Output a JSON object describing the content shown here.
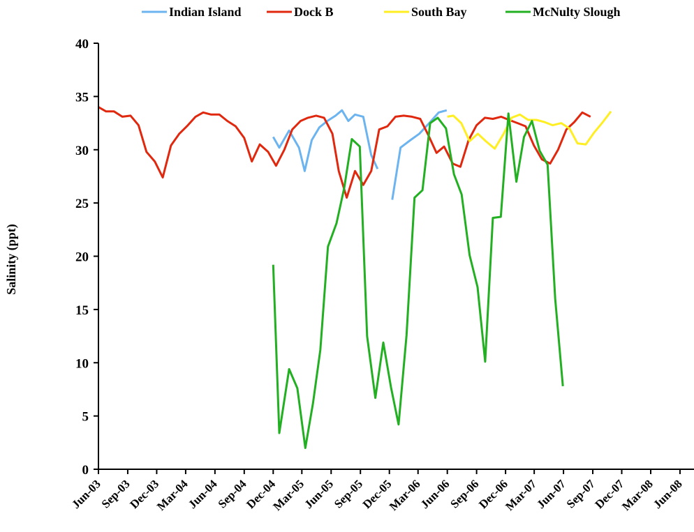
{
  "chart_data": {
    "type": "line",
    "title": "",
    "xlabel": "",
    "ylabel": "Salinity (ppt)",
    "ylim": [
      0,
      40
    ],
    "yticks": [
      0,
      5,
      10,
      15,
      20,
      25,
      30,
      35,
      40
    ],
    "xlim": [
      "2003-06-01",
      "2008-07-15"
    ],
    "xtick_dates": [
      "2003-06-01",
      "2003-09-01",
      "2003-12-01",
      "2004-03-01",
      "2004-06-01",
      "2004-09-01",
      "2004-12-01",
      "2005-03-01",
      "2005-06-01",
      "2005-09-01",
      "2005-12-01",
      "2006-03-01",
      "2006-06-01",
      "2006-09-01",
      "2006-12-01",
      "2007-03-01",
      "2007-06-01",
      "2007-09-01",
      "2007-12-01",
      "2008-03-01",
      "2008-06-01"
    ],
    "xtick_labels": [
      "Jun-03",
      "Sep-03",
      "Dec-03",
      "Mar-04",
      "Jun-04",
      "Sep-04",
      "Dec-04",
      "Mar-05",
      "Jun-05",
      "Sep-05",
      "Dec-05",
      "Mar-06",
      "Jun-06",
      "Sep-06",
      "Dec-06",
      "Mar-07",
      "Jun-07",
      "Sep-07",
      "Dec-07",
      "Mar-08",
      "Jun-08"
    ],
    "grid": false,
    "legend_position": "top",
    "series": [
      {
        "name": "Indian Island",
        "color": "#6cb4f0",
        "points": [
          [
            "2004-12-01",
            31.2
          ],
          [
            "2004-12-20",
            30.2
          ],
          [
            "2005-01-20",
            31.8
          ],
          [
            "2005-02-20",
            30.2
          ],
          [
            "2005-03-10",
            28.0
          ],
          [
            "2005-04-01",
            30.9
          ],
          [
            "2005-04-25",
            32.1
          ],
          [
            "2005-05-20",
            32.7
          ],
          [
            "2005-06-15",
            33.2
          ],
          [
            "2005-07-05",
            33.7
          ],
          [
            "2005-07-25",
            32.7
          ],
          [
            "2005-08-15",
            33.3
          ],
          [
            "2005-09-10",
            33.1
          ],
          [
            "2005-10-05",
            29.5
          ],
          [
            "2005-10-25",
            28.2
          ],
          null,
          [
            "2005-12-10",
            25.3
          ],
          [
            "2006-01-05",
            30.2
          ],
          [
            "2006-02-05",
            30.9
          ],
          [
            "2006-03-05",
            31.5
          ],
          [
            "2006-04-05",
            32.5
          ],
          [
            "2006-05-05",
            33.5
          ],
          [
            "2006-05-30",
            33.7
          ]
        ]
      },
      {
        "name": "Dock B",
        "color": "#e0280f",
        "points": [
          [
            "2003-06-01",
            34.0
          ],
          [
            "2003-06-25",
            33.6
          ],
          [
            "2003-07-20",
            33.6
          ],
          [
            "2003-08-15",
            33.1
          ],
          [
            "2003-09-10",
            33.2
          ],
          [
            "2003-10-05",
            32.3
          ],
          [
            "2003-10-30",
            29.8
          ],
          [
            "2003-11-25",
            28.9
          ],
          [
            "2003-12-20",
            27.4
          ],
          [
            "2004-01-15",
            30.4
          ],
          [
            "2004-02-10",
            31.5
          ],
          [
            "2004-03-05",
            32.2
          ],
          [
            "2004-04-01",
            33.1
          ],
          [
            "2004-04-25",
            33.5
          ],
          [
            "2004-05-20",
            33.3
          ],
          [
            "2004-06-15",
            33.3
          ],
          [
            "2004-07-10",
            32.7
          ],
          [
            "2004-08-05",
            32.2
          ],
          [
            "2004-09-01",
            31.1
          ],
          [
            "2004-09-25",
            28.9
          ],
          [
            "2004-10-20",
            30.5
          ],
          [
            "2004-11-15",
            29.8
          ],
          [
            "2004-12-10",
            28.5
          ],
          [
            "2005-01-05",
            30.0
          ],
          [
            "2005-01-30",
            31.9
          ],
          [
            "2005-02-25",
            32.7
          ],
          [
            "2005-03-20",
            33.0
          ],
          [
            "2005-04-15",
            33.2
          ],
          [
            "2005-05-10",
            33.0
          ],
          [
            "2005-06-05",
            31.5
          ],
          [
            "2005-06-25",
            28.0
          ],
          [
            "2005-07-20",
            25.5
          ],
          [
            "2005-08-15",
            28.0
          ],
          [
            "2005-09-10",
            26.7
          ],
          [
            "2005-10-05",
            28.0
          ],
          [
            "2005-10-30",
            31.9
          ],
          [
            "2005-11-25",
            32.2
          ],
          [
            "2005-12-20",
            33.1
          ],
          [
            "2006-01-15",
            33.2
          ],
          [
            "2006-02-10",
            33.1
          ],
          [
            "2006-03-08",
            32.9
          ],
          [
            "2006-04-02",
            31.4
          ],
          [
            "2006-04-28",
            29.7
          ],
          [
            "2006-05-22",
            30.3
          ],
          [
            "2006-06-18",
            28.7
          ],
          [
            "2006-07-12",
            28.4
          ],
          [
            "2006-08-07",
            30.9
          ],
          [
            "2006-09-01",
            32.3
          ],
          [
            "2006-09-27",
            33.0
          ],
          [
            "2006-10-22",
            32.9
          ],
          [
            "2006-11-17",
            33.1
          ],
          [
            "2006-12-12",
            32.8
          ],
          [
            "2007-01-08",
            32.5
          ],
          [
            "2007-02-02",
            32.2
          ],
          [
            "2007-02-28",
            30.4
          ],
          [
            "2007-03-25",
            29.1
          ],
          [
            "2007-04-20",
            28.7
          ],
          [
            "2007-05-15",
            30.0
          ],
          [
            "2007-06-10",
            31.9
          ],
          [
            "2007-07-05",
            32.6
          ],
          [
            "2007-07-30",
            33.5
          ],
          [
            "2007-08-25",
            33.1
          ]
        ]
      },
      {
        "name": "South Bay",
        "color": "#ffee22",
        "points": [
          [
            "2006-06-01",
            33.1
          ],
          [
            "2006-06-20",
            33.2
          ],
          [
            "2006-07-15",
            32.5
          ],
          [
            "2006-08-10",
            30.8
          ],
          [
            "2006-09-05",
            31.5
          ],
          [
            "2006-09-30",
            30.8
          ],
          [
            "2006-10-28",
            30.1
          ],
          [
            "2006-11-25",
            31.5
          ],
          [
            "2006-12-20",
            33.0
          ],
          [
            "2007-01-15",
            33.3
          ],
          [
            "2007-02-10",
            32.8
          ],
          [
            "2007-03-08",
            32.8
          ],
          [
            "2007-04-02",
            32.6
          ],
          [
            "2007-04-28",
            32.3
          ],
          [
            "2007-05-25",
            32.5
          ],
          [
            "2007-06-20",
            32.0
          ],
          [
            "2007-07-15",
            30.6
          ],
          [
            "2007-08-10",
            30.5
          ],
          [
            "2007-09-05",
            31.6
          ],
          [
            "2007-09-30",
            32.5
          ],
          [
            "2007-10-28",
            33.6
          ]
        ]
      },
      {
        "name": "McNulty Slough",
        "color": "#22b022",
        "points": [
          [
            "2004-12-01",
            19.2
          ],
          [
            "2004-12-20",
            3.4
          ],
          [
            "2005-01-20",
            9.4
          ],
          [
            "2005-02-15",
            7.6
          ],
          [
            "2005-03-12",
            2.0
          ],
          [
            "2005-04-05",
            6.2
          ],
          [
            "2005-04-28",
            11.2
          ],
          [
            "2005-05-22",
            20.9
          ],
          [
            "2005-06-18",
            23.1
          ],
          [
            "2005-07-12",
            26.4
          ],
          [
            "2005-08-05",
            31.0
          ],
          [
            "2005-08-30",
            30.3
          ],
          [
            "2005-09-22",
            12.5
          ],
          [
            "2005-10-18",
            6.7
          ],
          [
            "2005-11-12",
            11.9
          ],
          [
            "2005-12-06",
            7.7
          ],
          [
            "2005-12-30",
            4.2
          ],
          [
            "2006-01-24",
            12.6
          ],
          [
            "2006-02-18",
            25.5
          ],
          [
            "2006-03-15",
            26.2
          ],
          [
            "2006-04-08",
            32.5
          ],
          [
            "2006-05-02",
            33.0
          ],
          [
            "2006-05-28",
            32.0
          ],
          [
            "2006-06-22",
            27.7
          ],
          [
            "2006-07-16",
            25.8
          ],
          [
            "2006-08-10",
            20.1
          ],
          [
            "2006-09-04",
            17.1
          ],
          [
            "2006-09-28",
            10.1
          ],
          [
            "2006-10-22",
            23.6
          ],
          [
            "2006-11-16",
            23.7
          ],
          [
            "2006-12-10",
            33.4
          ],
          [
            "2007-01-04",
            27.0
          ],
          [
            "2007-01-28",
            31.2
          ],
          [
            "2007-02-22",
            32.7
          ],
          [
            "2007-03-18",
            29.9
          ],
          [
            "2007-04-12",
            28.6
          ],
          [
            "2007-05-06",
            16.0
          ],
          [
            "2007-05-30",
            7.8
          ]
        ]
      }
    ]
  }
}
